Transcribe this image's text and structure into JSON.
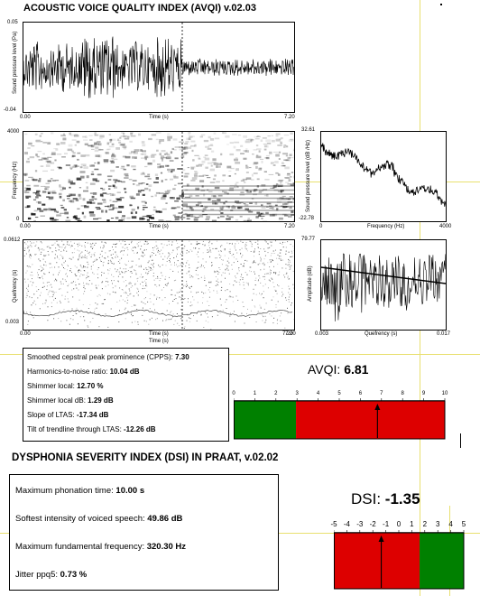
{
  "avqi_title": "ACOUSTIC VOICE QUALITY INDEX (AVQI) v.02.03",
  "dsi_title": "DYSPHONIA SEVERITY INDEX (DSI) IN PRAAT, v.02.02",
  "waveform": {
    "y_top": "0.05",
    "y_bottom": "-0.04",
    "ylabel": "Sound pressure level (Pa)",
    "x_start": "0.00",
    "x_end": "7.20",
    "xlabel": "Time (s)"
  },
  "spectrogram": {
    "y_top": "4000",
    "y_bottom": "0",
    "ylabel": "Frequency (Hz)",
    "x_start": "0.00",
    "x_end": "7.20",
    "xlabel": "Time (s)"
  },
  "cepstrogram": {
    "y_top": "0.0612",
    "y_bottom": "0.003",
    "ylabel": "Quefrency (s)",
    "x_start": "0.00",
    "x_end": "7.20",
    "xlabel": "Time (s)",
    "x_end_overlap": "7.20",
    "xlabel2": "Time (s)"
  },
  "ltas": {
    "y_top": "32.61",
    "y_bottom": "-22.78",
    "ylabel": "Sound pressure level (dB /Hz)",
    "x_start": "0",
    "x_end": "4000",
    "xlabel": "Frequency (Hz)"
  },
  "cepstrum": {
    "y_top": "79.77",
    "ylabel": "Amplitude (dB)",
    "x_start": "0.003",
    "x_end": "0.017",
    "xlabel": "Quefrency (s)"
  },
  "avqi_measures": [
    {
      "label": "Smoothed cepstral peak prominence (CPPS): ",
      "value": "7.30"
    },
    {
      "label": "Harmonics-to-noise ratio: ",
      "value": "10.04 dB"
    },
    {
      "label": "Shimmer local: ",
      "value": "12.70 %"
    },
    {
      "label": "Shimmer local dB: ",
      "value": "1.29 dB"
    },
    {
      "label": "Slope of LTAS: ",
      "value": "-17.34 dB"
    },
    {
      "label": "Tilt of trendline through LTAS: ",
      "value": "-12.26 dB"
    }
  ],
  "avqi_score": {
    "label": "AVQI: ",
    "value": "6.81"
  },
  "avqi_scale": {
    "ticks": [
      "0",
      "1",
      "2",
      "3",
      "4",
      "5",
      "6",
      "7",
      "8",
      "9",
      "10"
    ],
    "green_end": 2.95,
    "marker": 6.81,
    "min": 0,
    "max": 10,
    "green_color": "#008000",
    "red_color": "#dd0000"
  },
  "dsi_measures": [
    {
      "label": "Maximum phonation time: ",
      "value": "10.00 s"
    },
    {
      "label": "Softest intensity of voiced speech: ",
      "value": "49.86 dB"
    },
    {
      "label": "Maximum fundamental frequency: ",
      "value": "320.30 Hz"
    },
    {
      "label": "Jitter ppq5: ",
      "value": "0.73 %"
    }
  ],
  "dsi_score": {
    "label": "DSI: ",
    "value": "-1.35"
  },
  "dsi_scale": {
    "ticks": [
      "-5",
      "-4",
      "-3",
      "-2",
      "-1",
      "0",
      "1",
      "2",
      "3",
      "4",
      "5"
    ],
    "green_start": 1.6,
    "marker": -1.35,
    "min": -5,
    "max": 5,
    "green_color": "#008000",
    "red_color": "#dd0000"
  },
  "guide_color": "#e8e070"
}
